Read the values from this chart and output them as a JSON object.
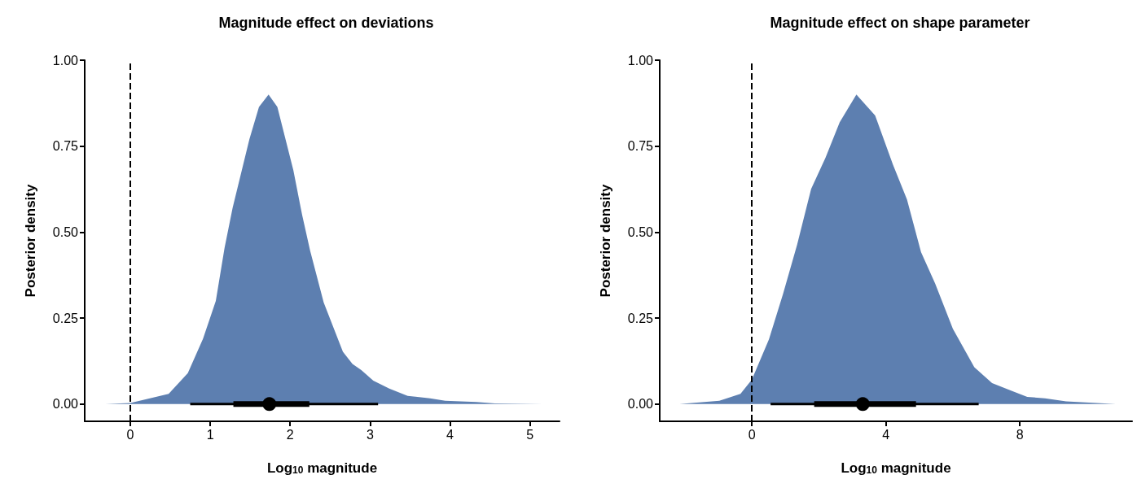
{
  "chart_data": [
    {
      "type": "area",
      "title": "Magnitude effect on deviations",
      "xlabel": "Log$_{10}$ magnitude",
      "ylabel": "Posterior density",
      "xlim": [
        -0.57,
        5.37
      ],
      "xticks": [
        0,
        1,
        2,
        3,
        4,
        5
      ],
      "ylim": [
        -0.05,
        1.0
      ],
      "yticks": [
        {
          "value": 0,
          "label": "0.00"
        },
        {
          "value": 0.25,
          "label": "0.25"
        },
        {
          "value": 0.5,
          "label": "0.50"
        },
        {
          "value": 0.75,
          "label": "0.75"
        },
        {
          "value": 1.0,
          "label": "1.00"
        }
      ],
      "ref_lines": [
        {
          "axis": "x",
          "value": 0,
          "color": "#000000",
          "line_style": "dashed"
        }
      ],
      "series": [
        {
          "color": "#5d7fb0",
          "x": [
            -0.31,
            0.0,
            0.48,
            0.72,
            0.91,
            1.07,
            1.18,
            1.28,
            1.49,
            1.61,
            1.73,
            1.84,
            2.04,
            2.15,
            2.25,
            2.42,
            2.66,
            2.78,
            2.89,
            3.04,
            3.24,
            3.47,
            3.75,
            3.94,
            4.33,
            4.56,
            5.16
          ],
          "values": [
            0,
            0.003,
            0.03,
            0.09,
            0.19,
            0.3,
            0.455,
            0.57,
            0.77,
            0.864,
            0.9,
            0.864,
            0.68,
            0.55,
            0.446,
            0.295,
            0.152,
            0.117,
            0.099,
            0.068,
            0.045,
            0.024,
            0.017,
            0.01,
            0.006,
            0.002,
            0
          ]
        },
        {
          "type": "line",
          "color": "#000000",
          "marker": "none",
          "x": [
            0.75,
            3.1
          ],
          "values": [
            0,
            0
          ]
        },
        {
          "type": "line",
          "color": "#000000",
          "marker": "none",
          "x": [
            1.29,
            2.24
          ],
          "values": [
            0,
            0
          ]
        },
        {
          "type": "scatter",
          "color": "#000000",
          "marker": "circle",
          "x": [
            1.74
          ],
          "values": [
            0
          ]
        }
      ]
    },
    {
      "type": "area",
      "title": "Magnitude effect on shape parameter",
      "xlabel": "Log$_{10}$ magnitude",
      "ylabel": "Posterior density",
      "xlim": [
        -2.75,
        11.35
      ],
      "xticks": [
        0,
        4,
        8
      ],
      "ylim": [
        -0.05,
        1.0
      ],
      "yticks": [
        {
          "value": 0,
          "label": "0.00"
        },
        {
          "value": 0.25,
          "label": "0.25"
        },
        {
          "value": 0.5,
          "label": "0.50"
        },
        {
          "value": 0.75,
          "label": "0.75"
        },
        {
          "value": 1.0,
          "label": "1.00"
        }
      ],
      "ref_lines": [
        {
          "axis": "x",
          "value": 0,
          "color": "#000000",
          "line_style": "dashed"
        }
      ],
      "series": [
        {
          "color": "#5d7fb0",
          "x": [
            -2.16,
            -0.97,
            -0.34,
            0,
            0.51,
            0.93,
            1.35,
            1.77,
            2.2,
            2.62,
            3.12,
            3.68,
            4.21,
            4.63,
            5.05,
            5.47,
            6.0,
            6.64,
            7.17,
            7.69,
            8.22,
            8.75,
            9.38,
            10.86
          ],
          "values": [
            0,
            0.01,
            0.03,
            0.071,
            0.188,
            0.32,
            0.463,
            0.626,
            0.717,
            0.819,
            0.9,
            0.839,
            0.697,
            0.595,
            0.442,
            0.351,
            0.219,
            0.107,
            0.061,
            0.041,
            0.021,
            0.017,
            0.008,
            0
          ]
        },
        {
          "type": "line",
          "color": "#000000",
          "marker": "none",
          "x": [
            0.56,
            6.77
          ],
          "values": [
            0,
            0
          ]
        },
        {
          "type": "line",
          "color": "#000000",
          "marker": "none",
          "x": [
            1.86,
            4.9
          ],
          "values": [
            0,
            0
          ]
        },
        {
          "type": "scatter",
          "color": "#000000",
          "marker": "circle",
          "x": [
            3.31
          ],
          "values": [
            0
          ]
        }
      ]
    }
  ]
}
